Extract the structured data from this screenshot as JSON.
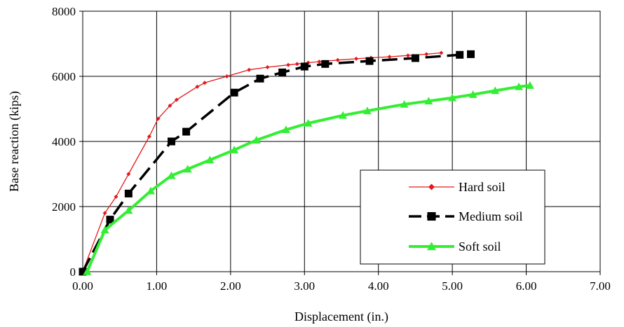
{
  "chart_data": {
    "type": "line",
    "title": "",
    "xlabel": "Displacement (in.)",
    "ylabel": "Base reaction (kips)",
    "xlim": [
      0,
      7
    ],
    "ylim": [
      0,
      8000
    ],
    "x_ticks": [
      "0.00",
      "1.00",
      "2.00",
      "3.00",
      "4.00",
      "5.00",
      "6.00",
      "7.00"
    ],
    "y_ticks": [
      "0",
      "2000",
      "4000",
      "6000",
      "8000"
    ],
    "grid": true,
    "legend_position": "lower-right",
    "series": [
      {
        "name": "Hard soil",
        "color": "#e31a1c",
        "marker": "diamond",
        "line_style": "solid",
        "x": [
          0.0,
          0.3,
          0.45,
          0.62,
          0.9,
          1.02,
          1.18,
          1.27,
          1.55,
          1.65,
          1.95,
          2.25,
          2.5,
          2.78,
          2.9,
          3.05,
          3.2,
          3.45,
          3.7,
          3.9,
          4.15,
          4.4,
          4.65,
          4.85
        ],
        "y": [
          0,
          1800,
          2300,
          3000,
          4150,
          4700,
          5100,
          5280,
          5680,
          5800,
          6000,
          6200,
          6280,
          6350,
          6380,
          6420,
          6450,
          6500,
          6540,
          6570,
          6600,
          6640,
          6680,
          6720
        ]
      },
      {
        "name": "Medium soil",
        "color": "#000000",
        "marker": "square",
        "line_style": "dashed",
        "x": [
          0.0,
          0.37,
          0.62,
          1.2,
          1.4,
          2.05,
          2.4,
          2.7,
          3.0,
          3.28,
          3.88,
          4.5,
          5.1,
          5.25
        ],
        "y": [
          0,
          1600,
          2400,
          4000,
          4300,
          5500,
          5930,
          6120,
          6300,
          6380,
          6470,
          6560,
          6660,
          6680
        ]
      },
      {
        "name": "Soft soil",
        "color": "#33ee33",
        "marker": "triangle",
        "line_style": "solid",
        "x": [
          0.06,
          0.3,
          0.62,
          0.92,
          1.2,
          1.42,
          1.72,
          2.05,
          2.35,
          2.75,
          3.05,
          3.52,
          3.85,
          4.35,
          4.68,
          5.0,
          5.28,
          5.58,
          5.9,
          6.05
        ],
        "y": [
          0,
          1280,
          1880,
          2480,
          2950,
          3150,
          3430,
          3740,
          4040,
          4360,
          4560,
          4800,
          4940,
          5140,
          5240,
          5340,
          5440,
          5560,
          5680,
          5720
        ]
      }
    ]
  }
}
